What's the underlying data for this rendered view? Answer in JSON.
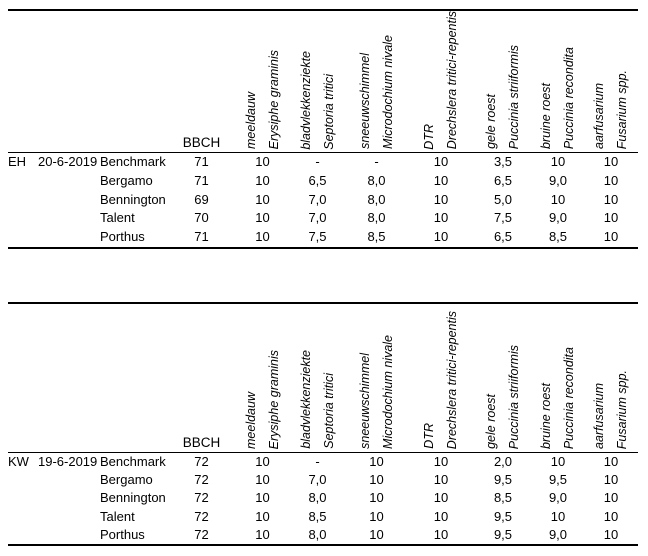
{
  "colors": {
    "text": "#000000",
    "background": "#ffffff",
    "rule": "#000000"
  },
  "tables": [
    {
      "site": "EH",
      "date": "20-6-2019",
      "bbch_label": "BBCH",
      "columns": [
        {
          "common": "meeldauw",
          "latin": "Erysiphe graminis"
        },
        {
          "common": "bladvlekkenziekte",
          "latin": "Septoria tritici"
        },
        {
          "common": "sneeuwschimmel",
          "latin": "Microdochium nivale"
        },
        {
          "common": "DTR",
          "latin": "Drechslera tritici-repentis"
        },
        {
          "common": "gele roest",
          "latin": "Puccinia striiformis"
        },
        {
          "common": "bruine roest",
          "latin": "Puccinia recondita"
        },
        {
          "common": "aarfusarium",
          "latin": "Fusarium spp."
        }
      ],
      "rows": [
        {
          "variety": "Benchmark",
          "bbch": "71",
          "values": [
            "10",
            "-",
            "-",
            "10",
            "3,5",
            "10",
            "10"
          ]
        },
        {
          "variety": "Bergamo",
          "bbch": "71",
          "values": [
            "10",
            "6,5",
            "8,0",
            "10",
            "6,5",
            "9,0",
            "10"
          ]
        },
        {
          "variety": "Bennington",
          "bbch": "69",
          "values": [
            "10",
            "7,0",
            "8,0",
            "10",
            "5,0",
            "10",
            "10"
          ]
        },
        {
          "variety": "Talent",
          "bbch": "70",
          "values": [
            "10",
            "7,0",
            "8,0",
            "10",
            "7,5",
            "9,0",
            "10"
          ]
        },
        {
          "variety": "Porthus",
          "bbch": "71",
          "values": [
            "10",
            "7,5",
            "8,5",
            "10",
            "6,5",
            "8,5",
            "10"
          ]
        }
      ]
    },
    {
      "site": "KW",
      "date": "19-6-2019",
      "bbch_label": "BBCH",
      "columns": [
        {
          "common": "meeldauw",
          "latin": "Erysiphe graminis"
        },
        {
          "common": "bladvlekkenziekte",
          "latin": "Septoria tritici"
        },
        {
          "common": "sneeuwschimmel",
          "latin": "Microdochium nivale"
        },
        {
          "common": "DTR",
          "latin": "Drechslera tritici-repentis"
        },
        {
          "common": "gele roest",
          "latin": "Puccinia striiformis"
        },
        {
          "common": "bruine roest",
          "latin": "Puccinia recondita"
        },
        {
          "common": "aarfusarium",
          "latin": "Fusarium spp."
        }
      ],
      "rows": [
        {
          "variety": "Benchmark",
          "bbch": "72",
          "values": [
            "10",
            "-",
            "10",
            "10",
            "2,0",
            "10",
            "10"
          ]
        },
        {
          "variety": "Bergamo",
          "bbch": "72",
          "values": [
            "10",
            "7,0",
            "10",
            "10",
            "9,5",
            "9,5",
            "10"
          ]
        },
        {
          "variety": "Bennington",
          "bbch": "72",
          "values": [
            "10",
            "8,0",
            "10",
            "10",
            "8,5",
            "9,0",
            "10"
          ]
        },
        {
          "variety": "Talent",
          "bbch": "72",
          "values": [
            "10",
            "8,5",
            "10",
            "10",
            "9,5",
            "10",
            "10"
          ]
        },
        {
          "variety": "Porthus",
          "bbch": "72",
          "values": [
            "10",
            "8,0",
            "10",
            "10",
            "9,5",
            "9,0",
            "10"
          ]
        }
      ]
    }
  ]
}
